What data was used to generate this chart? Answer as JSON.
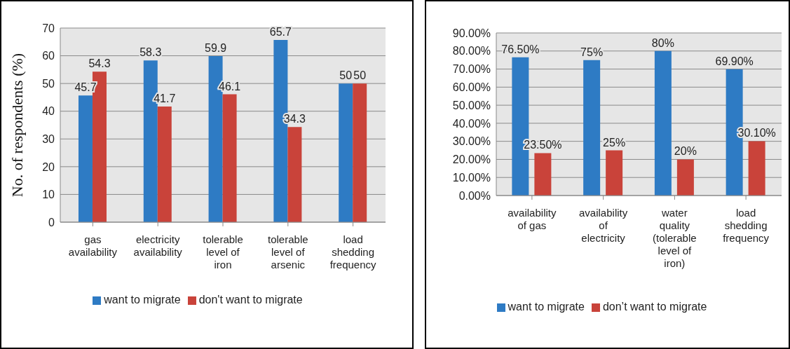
{
  "chart_data": [
    {
      "type": "bar",
      "ylabel": "No. of respondents (%)",
      "categories": [
        "gas availability",
        "electricity availability",
        "tolerable level of iron",
        "tolerable level of arsenic",
        "load shedding frequency"
      ],
      "series": [
        {
          "name": "want to migrate",
          "color": "#2e7bc4",
          "values": [
            45.7,
            58.3,
            59.9,
            65.7,
            50
          ]
        },
        {
          "name": "don't want to migrate",
          "color": "#c9433a",
          "values": [
            54.3,
            41.7,
            46.1,
            34.3,
            50
          ]
        }
      ],
      "ylim": [
        0,
        70
      ],
      "yticks": [
        0,
        10,
        20,
        30,
        40,
        50,
        60,
        70
      ],
      "grid": "y",
      "legend": "bottom",
      "data_labels": true
    },
    {
      "type": "bar",
      "categories": [
        "availability of gas",
        "availability of electricity",
        "water quality (tolerable level of iron)",
        "load shedding frequency"
      ],
      "series": [
        {
          "name": "want to migrate",
          "color": "#2e7bc4",
          "values": [
            76.5,
            75,
            80,
            69.9
          ],
          "value_labels": [
            "76.50%",
            "75%",
            "80%",
            "69.90%"
          ]
        },
        {
          "name": "don’t want to migrate",
          "color": "#c9433a",
          "values": [
            23.5,
            25,
            20,
            30.1
          ],
          "value_labels": [
            "23.50%",
            "25%",
            "20%",
            "30.10%"
          ]
        }
      ],
      "ylim": [
        0,
        90
      ],
      "yticks": [
        {
          "value": 0,
          "label": "0.00%"
        },
        {
          "value": 10,
          "label": "10.00%"
        },
        {
          "value": 20,
          "label": "20.00%"
        },
        {
          "value": 30,
          "label": "30.00%"
        },
        {
          "value": 40,
          "label": "40.00%"
        },
        {
          "value": 50,
          "label": "50.00%"
        },
        {
          "value": 60,
          "label": "60.00%"
        },
        {
          "value": 70,
          "label": "70.00%"
        },
        {
          "value": 80,
          "label": "80.00%"
        },
        {
          "value": 90,
          "label": "90.00%"
        }
      ],
      "grid": "y",
      "legend": "bottom"
    }
  ]
}
